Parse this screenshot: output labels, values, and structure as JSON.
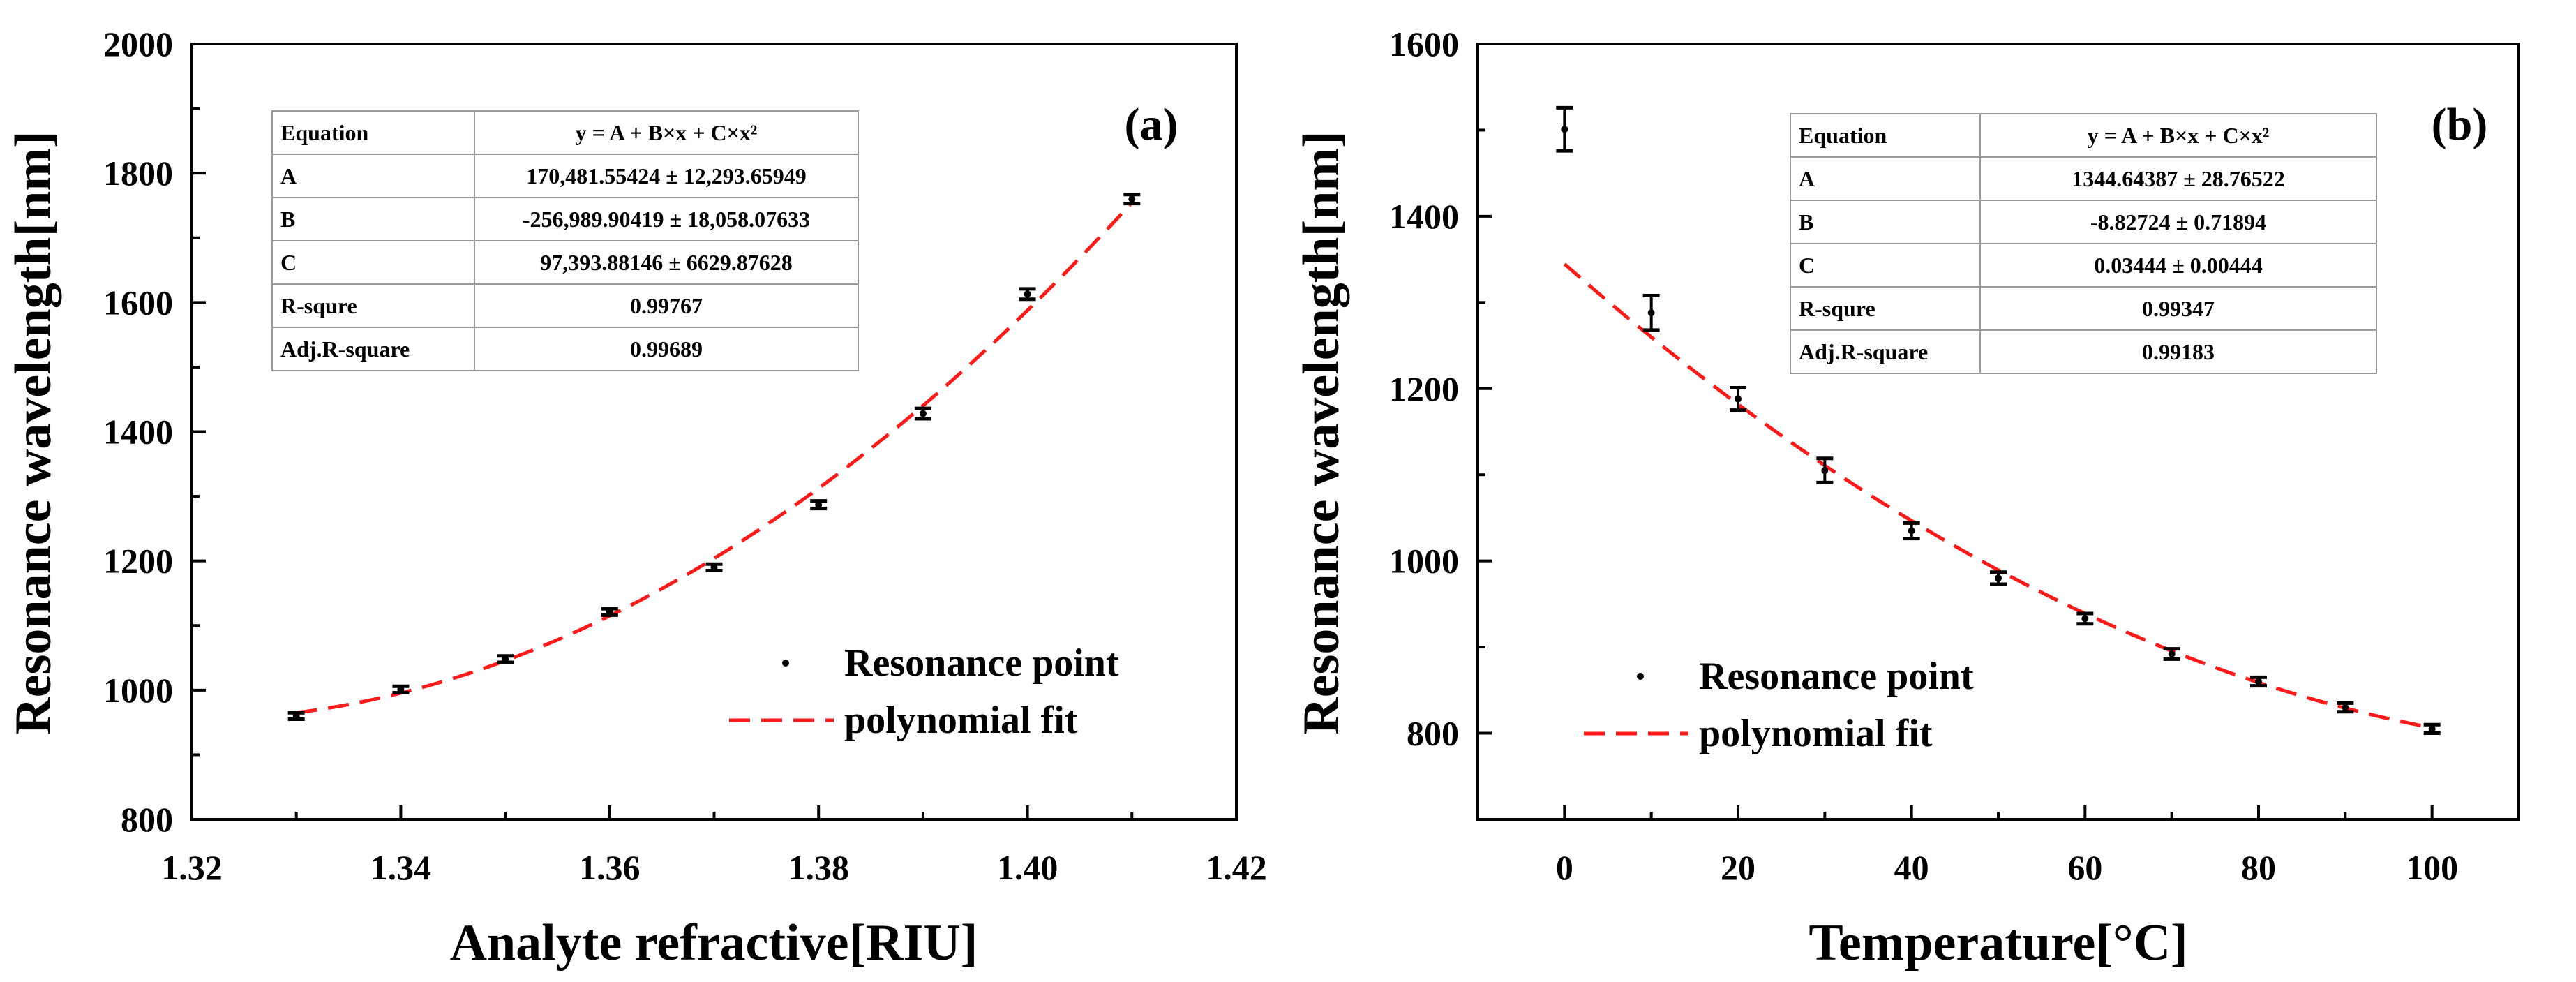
{
  "chart_data": [
    {
      "type": "scatter",
      "panel_label": "(a)",
      "xlabel": "Analyte refractive[RIU]",
      "ylabel": "Resonance wavelength[nm]",
      "xlim": [
        1.32,
        1.42
      ],
      "ylim": [
        800,
        2000
      ],
      "xticks": [
        1.32,
        1.34,
        1.36,
        1.38,
        1.4,
        1.42
      ],
      "xtick_labels": [
        "1.32",
        "1.34",
        "1.36",
        "1.38",
        "1.40",
        "1.42"
      ],
      "yticks": [
        800,
        1000,
        1200,
        1400,
        1600,
        1800,
        2000
      ],
      "ytick_labels": [
        "800",
        "1000",
        "1200",
        "1400",
        "1600",
        "1800",
        "2000"
      ],
      "legend_position": "lower-right",
      "series": [
        {
          "name": "Resonance point",
          "kind": "scatter-errorbar",
          "color": "#000000",
          "x": [
            1.33,
            1.34,
            1.35,
            1.36,
            1.37,
            1.38,
            1.39,
            1.4,
            1.41
          ],
          "y": [
            960,
            1001,
            1048,
            1121,
            1190,
            1287,
            1428,
            1613,
            1760
          ],
          "err": [
            5,
            5,
            5,
            5,
            5,
            6,
            8,
            8,
            7
          ]
        },
        {
          "name": "polynomial fit",
          "kind": "dashed-curve",
          "color": "#ff1a1a",
          "equation": {
            "A": 170481.55424,
            "B": -256989.90419,
            "C": 97393.88146
          },
          "x_range": [
            1.33,
            1.41
          ]
        }
      ],
      "fit_table": {
        "rows": [
          [
            "Equation",
            "y = A + B×x + C×x²"
          ],
          [
            "A",
            "170,481.55424 ± 12,293.65949"
          ],
          [
            "B",
            "-256,989.90419 ± 18,058.07633"
          ],
          [
            "C",
            "97,393.88146 ± 6629.87628"
          ],
          [
            "R-squre",
            "0.99767"
          ],
          [
            "Adj.R-square",
            "0.99689"
          ]
        ]
      }
    },
    {
      "type": "scatter",
      "panel_label": "(b)",
      "xlabel": "Temperature[°C]",
      "ylabel": "Resonance wavelength[nm]",
      "xlim": [
        -10,
        110
      ],
      "ylim": [
        700,
        1600
      ],
      "xticks": [
        0,
        20,
        40,
        60,
        80,
        100
      ],
      "xtick_labels": [
        "0",
        "20",
        "40",
        "60",
        "80",
        "100"
      ],
      "yticks": [
        800,
        1000,
        1200,
        1400,
        1600
      ],
      "ytick_labels": [
        "800",
        "1000",
        "1200",
        "1400",
        "1600"
      ],
      "legend_position": "lower-left",
      "series": [
        {
          "name": "Resonance point",
          "kind": "scatter-errorbar",
          "color": "#000000",
          "x": [
            0,
            10,
            20,
            30,
            40,
            50,
            60,
            70,
            80,
            90,
            100
          ],
          "y": [
            1501,
            1288,
            1188,
            1105,
            1035,
            980,
            933,
            892,
            860,
            830,
            805
          ],
          "err": [
            25,
            20,
            13,
            14,
            9,
            7,
            6,
            6,
            5,
            5,
            5
          ]
        },
        {
          "name": "polynomial fit",
          "kind": "dashed-curve",
          "color": "#ff1a1a",
          "equation": {
            "A": 1344.64387,
            "B": -8.82724,
            "C": 0.03444
          },
          "x_range": [
            0,
            100
          ]
        }
      ],
      "fit_table": {
        "rows": [
          [
            "Equation",
            "y = A + B×x + C×x²"
          ],
          [
            "A",
            "1344.64387 ± 28.76522"
          ],
          [
            "B",
            "-8.82724 ± 0.71894"
          ],
          [
            "C",
            "0.03444 ± 0.00444"
          ],
          [
            "R-squre",
            "0.99347"
          ],
          [
            "Adj.R-square",
            "0.99183"
          ]
        ]
      }
    }
  ]
}
